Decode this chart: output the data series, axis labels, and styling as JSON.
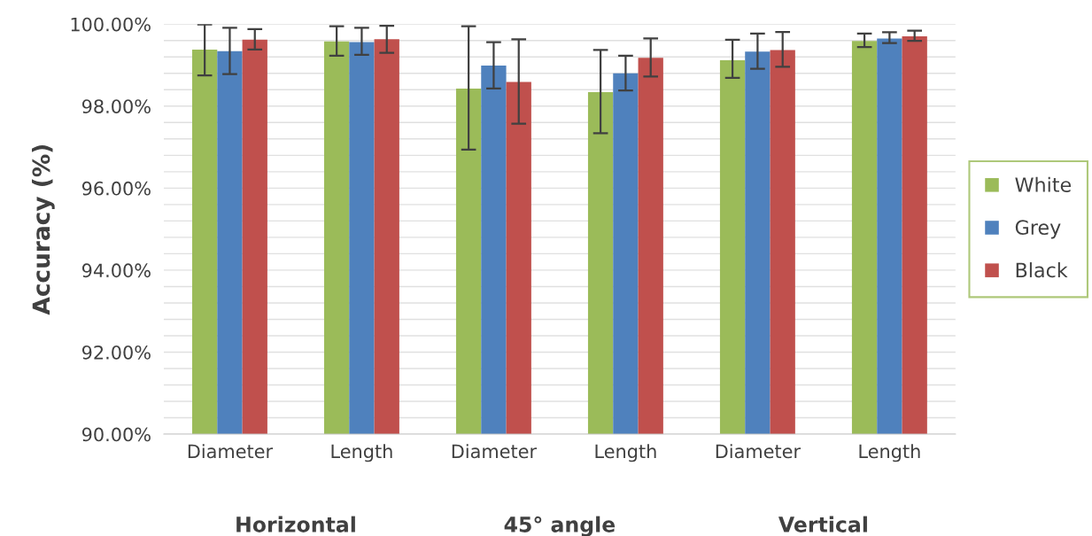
{
  "chart_data": {
    "type": "bar",
    "ylabel": "Accuracy (%)",
    "categories": [
      "Diameter",
      "Length",
      "Diameter",
      "Length",
      "Diameter",
      "Length"
    ],
    "series": [
      {
        "name": "White",
        "color": "#9bbb59",
        "values": [
          99.38,
          99.58,
          98.43,
          98.34,
          99.12,
          99.59
        ],
        "errors": [
          [
            98.75,
            99.99
          ],
          [
            99.23,
            99.95
          ],
          [
            96.94,
            99.95
          ],
          [
            97.34,
            99.37
          ],
          [
            98.69,
            99.62
          ],
          [
            99.44,
            99.77
          ]
        ]
      },
      {
        "name": "Grey",
        "color": "#4f81bd",
        "values": [
          99.34,
          99.56,
          98.99,
          98.8,
          99.33,
          99.65
        ],
        "errors": [
          [
            98.78,
            99.91
          ],
          [
            99.25,
            99.91
          ],
          [
            98.43,
            99.56
          ],
          [
            98.38,
            99.23
          ],
          [
            98.91,
            99.77
          ],
          [
            99.54,
            99.8
          ]
        ]
      },
      {
        "name": "Black",
        "color": "#c0504d",
        "values": [
          99.62,
          99.63,
          98.59,
          99.18,
          99.37,
          99.7
        ],
        "errors": [
          [
            99.38,
            99.88
          ],
          [
            99.3,
            99.96
          ],
          [
            97.57,
            99.63
          ],
          [
            98.72,
            99.65
          ],
          [
            98.96,
            99.81
          ],
          [
            99.59,
            99.84
          ]
        ]
      }
    ],
    "ylim": [
      90,
      100
    ],
    "yticks": [
      {
        "value": 90,
        "label": "90.00%"
      },
      {
        "value": 90.4,
        "label": null
      },
      {
        "value": 90.8,
        "label": null
      },
      {
        "value": 91.2,
        "label": null
      },
      {
        "value": 91.6,
        "label": null
      },
      {
        "value": 92,
        "label": "92.00%"
      },
      {
        "value": 92.4,
        "label": null
      },
      {
        "value": 92.8,
        "label": null
      },
      {
        "value": 93.2,
        "label": null
      },
      {
        "value": 93.6,
        "label": null
      },
      {
        "value": 94,
        "label": "94.00%"
      },
      {
        "value": 94.4,
        "label": null
      },
      {
        "value": 94.8,
        "label": null
      },
      {
        "value": 95.2,
        "label": null
      },
      {
        "value": 95.6,
        "label": null
      },
      {
        "value": 96,
        "label": "96.00%"
      },
      {
        "value": 96.4,
        "label": null
      },
      {
        "value": 96.8,
        "label": null
      },
      {
        "value": 97.2,
        "label": null
      },
      {
        "value": 97.6,
        "label": null
      },
      {
        "value": 98,
        "label": "98.00%"
      },
      {
        "value": 98.4,
        "label": null
      },
      {
        "value": 98.8,
        "label": null
      },
      {
        "value": 99.2,
        "label": null
      },
      {
        "value": 99.6,
        "label": null
      },
      {
        "value": 100,
        "label": "100.00%"
      }
    ],
    "grid": "y",
    "legend": "right",
    "annotations": [
      "Horizontal",
      "45° angle",
      "Vertical"
    ]
  }
}
